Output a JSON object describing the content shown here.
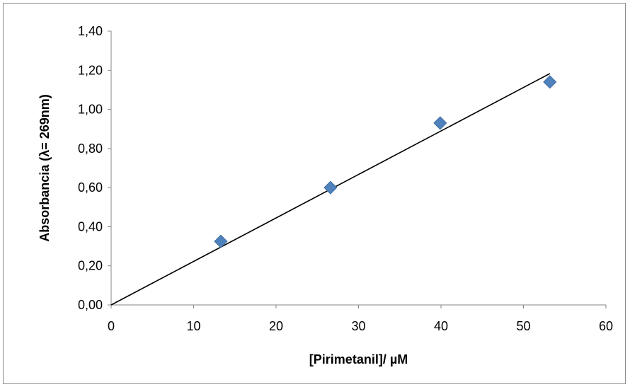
{
  "chart_data": {
    "type": "scatter",
    "xlabel": "[Pirimetanil]/ µM",
    "ylabel": "Absorbancia (λ= 269nm)",
    "xlim": [
      0,
      60
    ],
    "ylim": [
      0,
      1.4
    ],
    "x_ticks": [
      "0",
      "10",
      "20",
      "30",
      "40",
      "50",
      "60"
    ],
    "x_tick_values": [
      0,
      10,
      20,
      30,
      40,
      50,
      60
    ],
    "y_ticks": [
      "0,00",
      "0,20",
      "0,40",
      "0,60",
      "0,80",
      "1,00",
      "1,20",
      "1,40"
    ],
    "y_tick_values": [
      0,
      0.2,
      0.4,
      0.6,
      0.8,
      1.0,
      1.2,
      1.4
    ],
    "grid": false,
    "legend": "none",
    "series": [
      {
        "x": [
          13.3,
          26.6,
          39.9,
          53.2
        ],
        "y": [
          0.325,
          0.6,
          0.93,
          1.14
        ],
        "marker": "diamond",
        "color": "#4f81bd"
      }
    ],
    "trendline": {
      "type": "linear",
      "x": [
        0,
        53.2
      ],
      "y": [
        0,
        1.183
      ],
      "color": "#000000"
    }
  }
}
